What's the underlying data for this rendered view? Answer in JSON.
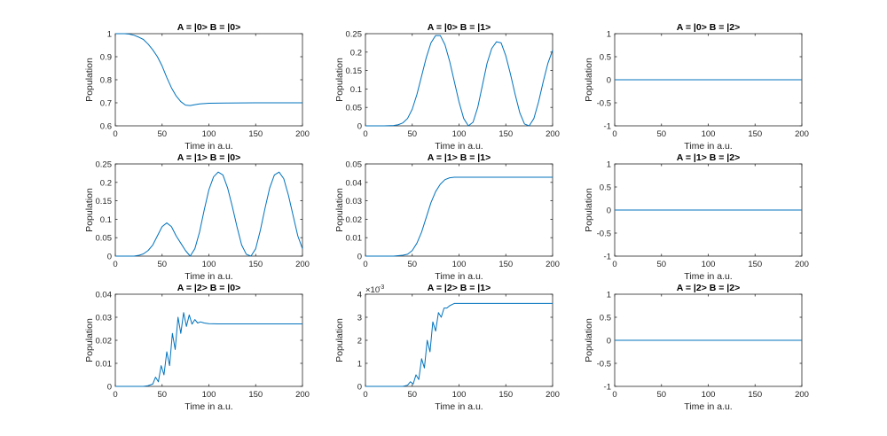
{
  "chart_data": [
    {
      "type": "line",
      "title": "A = |0> B = |0>",
      "xlabel": "Time in a.u.",
      "ylabel": "Population",
      "xlim": [
        0,
        200
      ],
      "ylim": [
        0.6,
        1
      ],
      "xticks": [
        "0",
        "50",
        "100",
        "150",
        "200"
      ],
      "yticks": [
        "0.6",
        "0.7",
        "0.8",
        "0.9",
        "1"
      ],
      "exponent": "",
      "color": "#0072BD",
      "series": [
        {
          "name": "population",
          "x": [
            0,
            5,
            10,
            15,
            20,
            25,
            30,
            35,
            40,
            45,
            50,
            55,
            60,
            65,
            70,
            75,
            80,
            85,
            90,
            100,
            120,
            150,
            200
          ],
          "y": [
            1,
            1,
            1,
            0.998,
            0.993,
            0.985,
            0.975,
            0.955,
            0.93,
            0.9,
            0.86,
            0.81,
            0.765,
            0.73,
            0.705,
            0.69,
            0.688,
            0.692,
            0.695,
            0.698,
            0.699,
            0.7,
            0.7
          ]
        }
      ]
    },
    {
      "type": "line",
      "title": "A = |0> B = |1>",
      "xlabel": "Time in a.u.",
      "ylabel": "Population",
      "xlim": [
        0,
        200
      ],
      "ylim": [
        0,
        0.25
      ],
      "xticks": [
        "0",
        "50",
        "100",
        "150",
        "200"
      ],
      "yticks": [
        "0",
        "0.05",
        "0.1",
        "0.15",
        "0.2",
        "0.25"
      ],
      "exponent": "",
      "color": "#0072BD",
      "series": [
        {
          "name": "population",
          "x": [
            0,
            20,
            30,
            35,
            40,
            45,
            50,
            55,
            60,
            65,
            70,
            75,
            80,
            85,
            90,
            95,
            100,
            105,
            110,
            115,
            120,
            125,
            130,
            135,
            140,
            145,
            150,
            155,
            160,
            165,
            170,
            175,
            180,
            185,
            190,
            195,
            200
          ],
          "y": [
            0,
            0,
            0.001,
            0.003,
            0.008,
            0.02,
            0.045,
            0.085,
            0.135,
            0.185,
            0.225,
            0.245,
            0.245,
            0.22,
            0.175,
            0.12,
            0.065,
            0.02,
            0,
            0.01,
            0.05,
            0.11,
            0.17,
            0.21,
            0.228,
            0.225,
            0.19,
            0.14,
            0.085,
            0.035,
            0.005,
            0,
            0.02,
            0.065,
            0.12,
            0.17,
            0.205
          ]
        }
      ]
    },
    {
      "type": "line",
      "title": "A = |0> B = |2>",
      "xlabel": "Time in a.u.",
      "ylabel": "Population",
      "xlim": [
        0,
        200
      ],
      "ylim": [
        -1,
        1
      ],
      "xticks": [
        "0",
        "50",
        "100",
        "150",
        "200"
      ],
      "yticks": [
        "-1",
        "-0.5",
        "0",
        "0.5",
        "1"
      ],
      "exponent": "",
      "color": "#0072BD",
      "series": [
        {
          "name": "population",
          "x": [
            0,
            200
          ],
          "y": [
            0,
            0
          ]
        }
      ]
    },
    {
      "type": "line",
      "title": "A = |1> B = |0>",
      "xlabel": "Time in a.u.",
      "ylabel": "Population",
      "xlim": [
        0,
        200
      ],
      "ylim": [
        0,
        0.25
      ],
      "xticks": [
        "0",
        "50",
        "100",
        "150",
        "200"
      ],
      "yticks": [
        "0",
        "0.05",
        "0.1",
        "0.15",
        "0.2",
        "0.25"
      ],
      "exponent": "",
      "color": "#0072BD",
      "series": [
        {
          "name": "population",
          "x": [
            0,
            20,
            25,
            30,
            35,
            40,
            45,
            50,
            55,
            60,
            65,
            70,
            75,
            80,
            85,
            90,
            95,
            100,
            105,
            110,
            115,
            120,
            125,
            130,
            135,
            140,
            145,
            150,
            155,
            160,
            165,
            170,
            175,
            180,
            185,
            190,
            195,
            200
          ],
          "y": [
            0,
            0,
            0.002,
            0.006,
            0.015,
            0.03,
            0.055,
            0.08,
            0.09,
            0.08,
            0.055,
            0.035,
            0.015,
            0,
            0.02,
            0.065,
            0.125,
            0.18,
            0.215,
            0.228,
            0.22,
            0.185,
            0.135,
            0.08,
            0.03,
            0.005,
            0,
            0.02,
            0.07,
            0.13,
            0.185,
            0.22,
            0.228,
            0.21,
            0.165,
            0.11,
            0.055,
            0.02
          ]
        }
      ]
    },
    {
      "type": "line",
      "title": "A = |1> B = |1>",
      "xlabel": "Time in a.u.",
      "ylabel": "Population",
      "xlim": [
        0,
        200
      ],
      "ylim": [
        0,
        0.05
      ],
      "xticks": [
        "0",
        "50",
        "100",
        "150",
        "200"
      ],
      "yticks": [
        "0",
        "0.01",
        "0.02",
        "0.03",
        "0.04",
        "0.05"
      ],
      "exponent": "",
      "color": "#0072BD",
      "series": [
        {
          "name": "population",
          "x": [
            0,
            30,
            40,
            45,
            50,
            55,
            60,
            65,
            70,
            75,
            80,
            85,
            90,
            95,
            100,
            110,
            150,
            200
          ],
          "y": [
            0,
            0,
            0.0005,
            0.001,
            0.003,
            0.007,
            0.013,
            0.021,
            0.029,
            0.035,
            0.039,
            0.0415,
            0.0425,
            0.0428,
            0.0428,
            0.0428,
            0.0428,
            0.0428
          ]
        }
      ]
    },
    {
      "type": "line",
      "title": "A = |1> B = |2>",
      "xlabel": "Time in a.u.",
      "ylabel": "Population",
      "xlim": [
        0,
        200
      ],
      "ylim": [
        -1,
        1
      ],
      "xticks": [
        "0",
        "50",
        "100",
        "150",
        "200"
      ],
      "yticks": [
        "-1",
        "-0.5",
        "0",
        "0.5",
        "1"
      ],
      "exponent": "",
      "color": "#0072BD",
      "series": [
        {
          "name": "population",
          "x": [
            0,
            200
          ],
          "y": [
            0,
            0
          ]
        }
      ]
    },
    {
      "type": "line",
      "title": "A = |2> B = |0>",
      "xlabel": "Time in a.u.",
      "ylabel": "Population",
      "xlim": [
        0,
        200
      ],
      "ylim": [
        0,
        0.04
      ],
      "xticks": [
        "0",
        "50",
        "100",
        "150",
        "200"
      ],
      "yticks": [
        "0",
        "0.01",
        "0.02",
        "0.03",
        "0.04"
      ],
      "exponent": "",
      "color": "#0072BD",
      "series": [
        {
          "name": "population",
          "x": [
            0,
            30,
            35,
            40,
            43,
            46,
            49,
            52,
            55,
            58,
            61,
            64,
            67,
            70,
            73,
            76,
            79,
            82,
            85,
            88,
            91,
            95,
            100,
            110,
            150,
            200
          ],
          "y": [
            0,
            0,
            0.0003,
            0.001,
            0.004,
            0.002,
            0.009,
            0.005,
            0.015,
            0.009,
            0.023,
            0.016,
            0.03,
            0.023,
            0.032,
            0.026,
            0.031,
            0.027,
            0.029,
            0.0275,
            0.028,
            0.0275,
            0.0272,
            0.0271,
            0.0271,
            0.0271
          ]
        }
      ]
    },
    {
      "type": "line",
      "title": "A = |2> B = |1>",
      "xlabel": "Time in a.u.",
      "ylabel": "Population",
      "xlim": [
        0,
        200
      ],
      "ylim": [
        0,
        0.004
      ],
      "xticks": [
        "0",
        "50",
        "100",
        "150",
        "200"
      ],
      "yticks": [
        "0",
        "1",
        "2",
        "3",
        "4"
      ],
      "exponent": "×10",
      "exponent_power": "-3",
      "color": "#0072BD",
      "series": [
        {
          "name": "population",
          "x": [
            0,
            40,
            45,
            48,
            51,
            54,
            57,
            60,
            63,
            66,
            69,
            72,
            75,
            78,
            81,
            84,
            87,
            90,
            95,
            100,
            110,
            150,
            200
          ],
          "y": [
            0,
            0,
            5e-05,
            0.0002,
            0.0001,
            0.0005,
            0.0003,
            0.0012,
            0.0008,
            0.002,
            0.0015,
            0.0028,
            0.0024,
            0.0032,
            0.003,
            0.0034,
            0.0034,
            0.0035,
            0.0036,
            0.0036,
            0.0036,
            0.0036,
            0.0036
          ]
        }
      ]
    },
    {
      "type": "line",
      "title": "A = |2> B = |2>",
      "xlabel": "Time in a.u.",
      "ylabel": "Population",
      "xlim": [
        0,
        200
      ],
      "ylim": [
        -1,
        1
      ],
      "xticks": [
        "0",
        "50",
        "100",
        "150",
        "200"
      ],
      "yticks": [
        "-1",
        "-0.5",
        "0",
        "0.5",
        "1"
      ],
      "exponent": "",
      "color": "#0072BD",
      "series": [
        {
          "name": "population",
          "x": [
            0,
            200
          ],
          "y": [
            0,
            0
          ]
        }
      ]
    }
  ]
}
